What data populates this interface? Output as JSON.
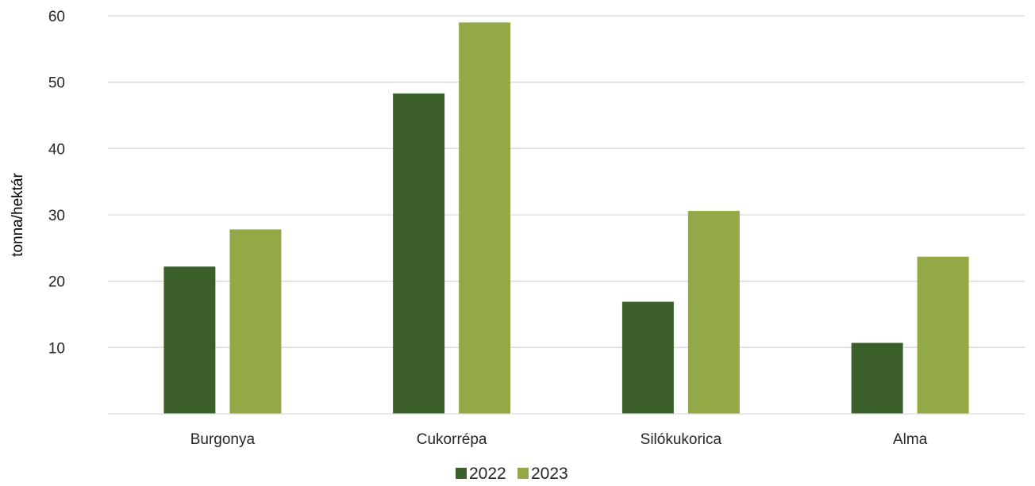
{
  "chart_data": {
    "type": "bar",
    "title": "",
    "xlabel": "",
    "ylabel": "tonna/hektár",
    "ylim": [
      0,
      60
    ],
    "yticks": [
      10,
      20,
      30,
      40,
      50,
      60
    ],
    "grid": true,
    "legend_position": "bottom",
    "categories": [
      "Burgonya",
      "Cukorrépa",
      "Silókukorica",
      "Alma"
    ],
    "series": [
      {
        "name": "2022",
        "color": "#3a5f28",
        "values": [
          22.2,
          48.3,
          16.9,
          10.7
        ]
      },
      {
        "name": "2023",
        "color": "#93a945",
        "values": [
          27.8,
          59.0,
          30.6,
          23.7
        ]
      }
    ]
  }
}
